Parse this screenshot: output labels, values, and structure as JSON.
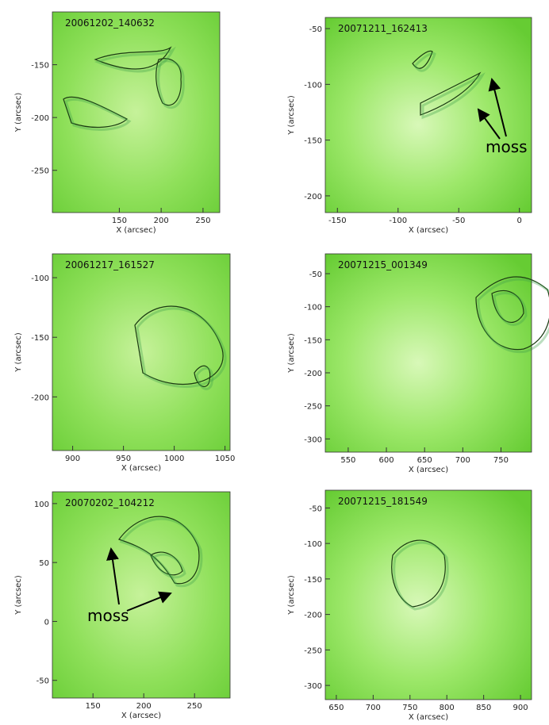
{
  "panels": [
    {
      "title": "20061202_140632",
      "x_label": "X (arcsec)",
      "y_label": "Y (arcsec)",
      "xlim": [
        70,
        270
      ],
      "xticks": [
        150,
        200,
        250
      ],
      "ylim": [
        -290,
        -100
      ],
      "yticks": [
        -150,
        -200,
        -250
      ]
    },
    {
      "title": "20071211_162413",
      "x_label": "X (arcsec)",
      "y_label": "Y (arcsec)",
      "xlim": [
        -160,
        10
      ],
      "xticks": [
        -150,
        -100,
        -50,
        0
      ],
      "ylim": [
        -215,
        -40
      ],
      "yticks": [
        -50,
        -100,
        -150,
        -200
      ],
      "annotation": "moss"
    },
    {
      "title": "20061217_161527",
      "x_label": "X (arcsec)",
      "y_label": "Y (arcsec)",
      "xlim": [
        880,
        1055
      ],
      "xticks": [
        900,
        950,
        1000,
        1050
      ],
      "ylim": [
        -245,
        -80
      ],
      "yticks": [
        -100,
        -150,
        -200
      ]
    },
    {
      "title": "20071215_001349",
      "x_label": "X (arcsec)",
      "y_label": "Y (arcsec)",
      "xlim": [
        520,
        790
      ],
      "xticks": [
        550,
        600,
        650,
        700,
        750
      ],
      "ylim": [
        -320,
        -20
      ],
      "yticks": [
        -50,
        -100,
        -150,
        -200,
        -250,
        -300
      ]
    },
    {
      "title": "20070202_104212",
      "x_label": "X (arcsec)",
      "y_label": "Y (arcsec)",
      "xlim": [
        110,
        285
      ],
      "xticks": [
        150,
        200,
        250
      ],
      "ylim": [
        -65,
        110
      ],
      "yticks": [
        100,
        50,
        0,
        -50
      ],
      "annotation": "moss"
    },
    {
      "title": "20071215_181549",
      "x_label": "X (arcsec)",
      "y_label": "Y (arcsec)",
      "xlim": [
        635,
        915
      ],
      "xticks": [
        650,
        700,
        750,
        800,
        850,
        900
      ],
      "ylim": [
        -320,
        -25
      ],
      "yticks": [
        -50,
        -100,
        -150,
        -200,
        -250,
        -300
      ]
    }
  ]
}
